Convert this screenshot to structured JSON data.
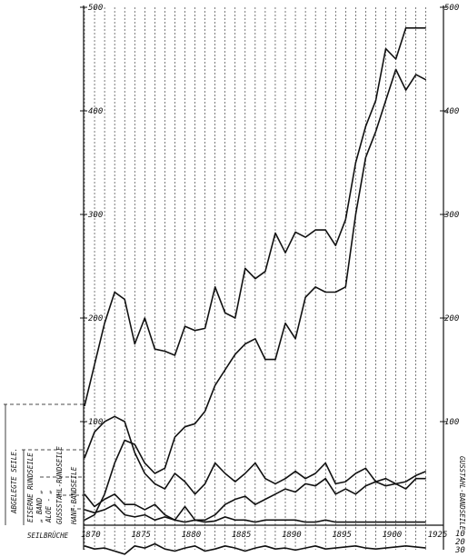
{
  "chart_data": {
    "type": "line",
    "title": "",
    "xlabel": "",
    "ylabel": "",
    "x": [
      1870,
      1871,
      1872,
      1873,
      1874,
      1875,
      1876,
      1877,
      1878,
      1879,
      1880,
      1881,
      1882,
      1883,
      1884,
      1885,
      1886,
      1887,
      1888,
      1889,
      1890,
      1891,
      1892,
      1893,
      1894,
      1895,
      1896,
      1897,
      1898,
      1899,
      1900,
      1901,
      1902,
      1903,
      1904
    ],
    "xlim": [
      1870,
      1904
    ],
    "ylim": [
      -30,
      500
    ],
    "x_tick_labels": [
      "1870",
      "1875",
      "1880",
      "1885",
      "1890",
      "1895",
      "1900",
      "1925"
    ],
    "y_ticks_left": [
      "100",
      "200",
      "300",
      "400",
      "500"
    ],
    "y_ticks_right": [
      "100",
      "200",
      "300",
      "400",
      "500"
    ],
    "y_ticks_lower_right": [
      "10",
      "20",
      "30"
    ],
    "grid": "vertical dashed lines per year",
    "legend": "vertical labels at left",
    "series": [
      {
        "name": "ABGELEGTE SEILE.",
        "values": [
          115,
          155,
          195,
          225,
          218,
          175,
          200,
          170,
          168,
          164,
          192,
          188,
          190,
          230,
          205,
          200,
          248,
          238,
          245,
          282,
          263,
          283,
          278,
          285,
          285,
          270,
          295,
          350,
          385,
          410,
          460,
          450,
          480,
          480,
          480
        ]
      },
      {
        "name": "RUNDSEILE",
        "values": [
          65,
          90,
          100,
          105,
          100,
          70,
          50,
          40,
          35,
          50,
          42,
          30,
          40,
          60,
          50,
          42,
          50,
          60,
          45,
          40,
          45,
          52,
          45,
          50,
          60,
          40,
          42,
          50,
          55,
          42,
          45,
          40,
          42,
          48,
          52
        ]
      },
      {
        "name": "ALOE",
        "values": [
          5,
          10,
          30,
          60,
          82,
          78,
          60,
          50,
          55,
          85,
          95,
          98,
          110,
          135,
          150,
          165,
          175,
          180,
          160,
          160,
          195,
          180,
          220,
          230,
          225,
          225,
          230,
          300,
          355,
          380,
          410,
          440,
          420,
          435,
          430
        ]
      },
      {
        "name": "GUSSSTAHL-RUNDSEILE",
        "values": [
          30,
          18,
          25,
          30,
          20,
          20,
          15,
          20,
          10,
          5,
          18,
          5,
          5,
          10,
          20,
          25,
          28,
          20,
          25,
          30,
          35,
          32,
          40,
          38,
          45,
          30,
          35,
          30,
          38,
          42,
          38,
          40,
          35,
          45,
          45
        ]
      },
      {
        "name": "HANF-BANDSEILE",
        "values": [
          15,
          12,
          15,
          20,
          10,
          8,
          10,
          5,
          8,
          5,
          3,
          5,
          3,
          4,
          8,
          5,
          5,
          3,
          5,
          5,
          5,
          5,
          3,
          3,
          5,
          3,
          3,
          3,
          3,
          3,
          3,
          3,
          3,
          3,
          3
        ]
      },
      {
        "name": "SEILBRÜCHE",
        "values": [
          -20,
          -23,
          -22,
          -25,
          -28,
          -20,
          -22,
          -18,
          -23,
          -25,
          -22,
          -20,
          -25,
          -23,
          -20,
          -22,
          -25,
          -22,
          -20,
          -23,
          -22,
          -24,
          -22,
          -20,
          -23,
          -22,
          -21,
          -20,
          -22,
          -23,
          -22,
          -21,
          -20,
          -21,
          -22
        ]
      }
    ],
    "left_labels": [
      "ABGELEGTE SEILE.",
      "EISERNE RUNDSEILE",
      "„   BAND  „",
      "ALOE -  „",
      "GUSSSTAHL-RUNDSEILE",
      "HANF-BANDSEILE",
      "SEILBRÜCHE"
    ],
    "right_vertical_label": "GUSSTAHL-BANDSEILE"
  }
}
